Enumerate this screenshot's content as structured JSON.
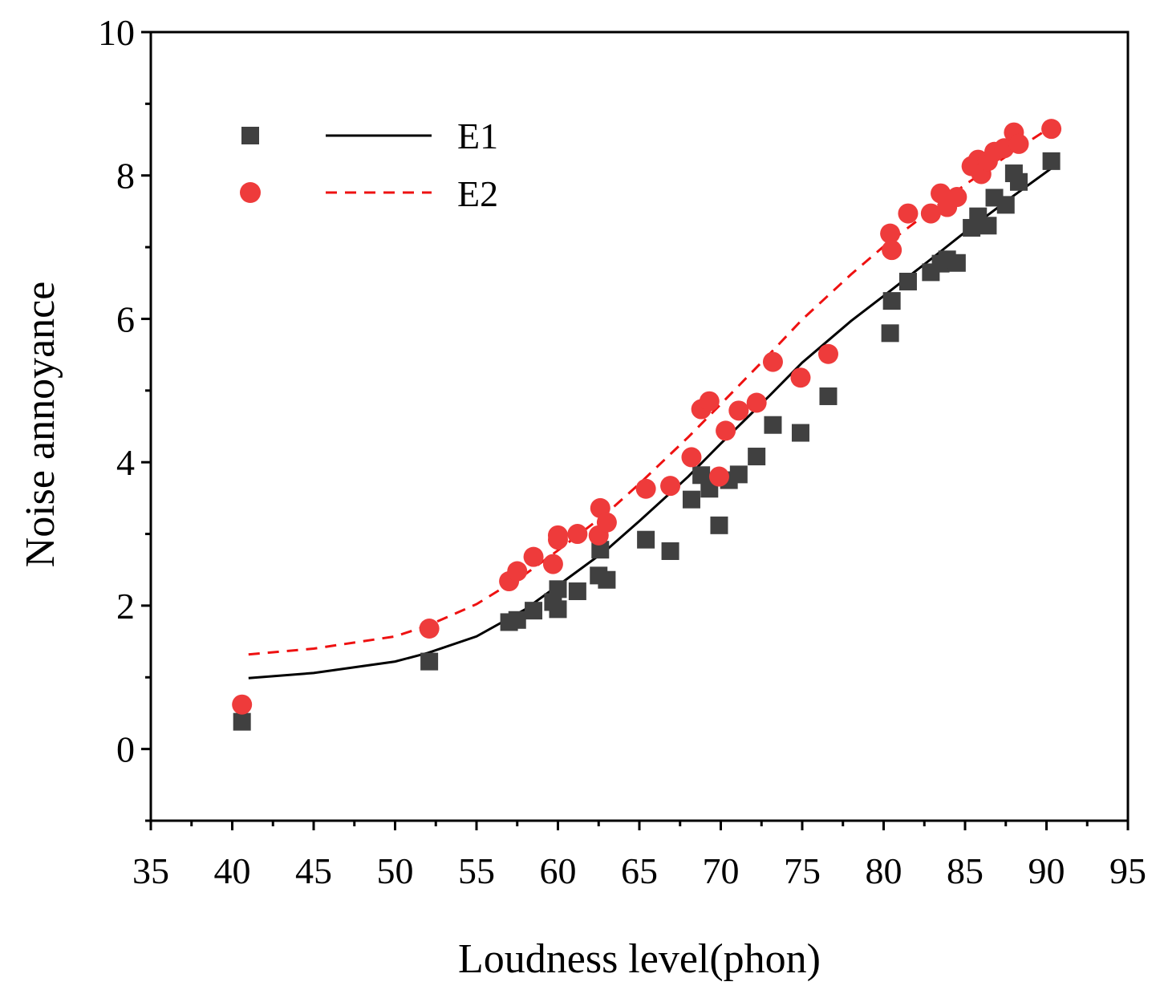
{
  "chart_data": {
    "type": "scatter",
    "title": "",
    "xlabel": "Loudness level(phon)",
    "ylabel": "Noise annoyance",
    "xlim": [
      35,
      95
    ],
    "ylim": [
      -1,
      10
    ],
    "x_ticks": [
      35,
      40,
      45,
      50,
      55,
      60,
      65,
      70,
      75,
      80,
      85,
      90,
      95
    ],
    "y_ticks": [
      0,
      2,
      4,
      6,
      8,
      10
    ],
    "x_tick_labels": [
      "35",
      "40",
      "45",
      "50",
      "55",
      "60",
      "65",
      "70",
      "75",
      "80",
      "85",
      "90",
      "95"
    ],
    "y_tick_labels": [
      "0",
      "2",
      "4",
      "6",
      "8",
      "10"
    ],
    "grid": false,
    "legend_position": "top-left",
    "legend": [
      {
        "label": "E1",
        "marker": "square",
        "line": "solid"
      },
      {
        "label": "E2",
        "marker": "circle",
        "line": "dashed"
      }
    ],
    "colors": {
      "E1": "#404040",
      "E2": "#ee3b3b",
      "E1_line": "#000000",
      "E2_line": "#ee1111"
    },
    "series": [
      {
        "name": "E1",
        "kind": "scatter",
        "marker": "square",
        "points": [
          [
            40.6,
            0.38
          ],
          [
            52.1,
            1.22
          ],
          [
            57.0,
            1.77
          ],
          [
            57.5,
            1.8
          ],
          [
            58.5,
            1.93
          ],
          [
            59.7,
            2.05
          ],
          [
            60.0,
            1.95
          ],
          [
            60.0,
            2.23
          ],
          [
            61.2,
            2.2
          ],
          [
            62.5,
            2.42
          ],
          [
            62.6,
            2.78
          ],
          [
            63.0,
            2.36
          ],
          [
            65.4,
            2.92
          ],
          [
            66.9,
            2.76
          ],
          [
            68.2,
            3.48
          ],
          [
            68.8,
            3.82
          ],
          [
            69.3,
            3.63
          ],
          [
            69.9,
            3.12
          ],
          [
            70.5,
            3.75
          ],
          [
            71.1,
            3.83
          ],
          [
            72.2,
            4.08
          ],
          [
            73.2,
            4.52
          ],
          [
            74.9,
            4.41
          ],
          [
            76.6,
            4.92
          ],
          [
            80.4,
            5.8
          ],
          [
            80.5,
            6.25
          ],
          [
            81.5,
            6.52
          ],
          [
            82.9,
            6.65
          ],
          [
            83.5,
            6.77
          ],
          [
            83.9,
            6.83
          ],
          [
            84.5,
            6.78
          ],
          [
            85.4,
            7.27
          ],
          [
            85.8,
            7.43
          ],
          [
            86.4,
            7.3
          ],
          [
            86.8,
            7.69
          ],
          [
            87.5,
            7.59
          ],
          [
            88.0,
            8.03
          ],
          [
            88.3,
            7.91
          ],
          [
            90.3,
            8.2
          ]
        ]
      },
      {
        "name": "E2",
        "kind": "scatter",
        "marker": "circle",
        "points": [
          [
            40.6,
            0.62
          ],
          [
            52.1,
            1.68
          ],
          [
            57.0,
            2.34
          ],
          [
            57.5,
            2.48
          ],
          [
            58.5,
            2.68
          ],
          [
            59.7,
            2.58
          ],
          [
            60.0,
            2.92
          ],
          [
            60.0,
            2.98
          ],
          [
            61.2,
            3.0
          ],
          [
            62.5,
            2.98
          ],
          [
            62.6,
            3.36
          ],
          [
            63.0,
            3.16
          ],
          [
            65.4,
            3.63
          ],
          [
            66.9,
            3.67
          ],
          [
            68.2,
            4.07
          ],
          [
            68.8,
            4.74
          ],
          [
            69.3,
            4.85
          ],
          [
            69.9,
            3.8
          ],
          [
            70.3,
            4.44
          ],
          [
            71.1,
            4.72
          ],
          [
            72.2,
            4.83
          ],
          [
            73.2,
            5.4
          ],
          [
            74.9,
            5.18
          ],
          [
            76.6,
            5.51
          ],
          [
            80.4,
            7.19
          ],
          [
            80.5,
            6.96
          ],
          [
            81.5,
            7.47
          ],
          [
            82.9,
            7.47
          ],
          [
            83.5,
            7.75
          ],
          [
            83.9,
            7.56
          ],
          [
            84.5,
            7.7
          ],
          [
            85.4,
            8.13
          ],
          [
            85.8,
            8.22
          ],
          [
            86.0,
            8.02
          ],
          [
            86.4,
            8.2
          ],
          [
            86.8,
            8.33
          ],
          [
            87.4,
            8.38
          ],
          [
            88.0,
            8.6
          ],
          [
            88.3,
            8.44
          ],
          [
            90.3,
            8.65
          ]
        ]
      },
      {
        "name": "E1 fit",
        "kind": "line",
        "style": "solid",
        "points": [
          [
            41,
            0.99
          ],
          [
            45,
            1.06
          ],
          [
            50,
            1.22
          ],
          [
            52,
            1.34
          ],
          [
            55,
            1.57
          ],
          [
            58,
            1.95
          ],
          [
            60,
            2.28
          ],
          [
            63,
            2.78
          ],
          [
            65,
            3.18
          ],
          [
            68,
            3.8
          ],
          [
            70,
            4.26
          ],
          [
            73,
            4.93
          ],
          [
            75,
            5.39
          ],
          [
            78,
            5.97
          ],
          [
            80,
            6.32
          ],
          [
            83,
            6.85
          ],
          [
            85,
            7.21
          ],
          [
            88,
            7.72
          ],
          [
            90.3,
            8.1
          ]
        ]
      },
      {
        "name": "E2 fit",
        "kind": "line",
        "style": "dashed",
        "points": [
          [
            41,
            1.32
          ],
          [
            45,
            1.4
          ],
          [
            50,
            1.57
          ],
          [
            52,
            1.72
          ],
          [
            55,
            2.02
          ],
          [
            58,
            2.44
          ],
          [
            60,
            2.77
          ],
          [
            63,
            3.29
          ],
          [
            65,
            3.7
          ],
          [
            68,
            4.35
          ],
          [
            70,
            4.81
          ],
          [
            73,
            5.51
          ],
          [
            75,
            5.99
          ],
          [
            78,
            6.62
          ],
          [
            80,
            7.01
          ],
          [
            83,
            7.53
          ],
          [
            85,
            7.87
          ],
          [
            88,
            8.34
          ],
          [
            90.3,
            8.68
          ]
        ]
      }
    ]
  }
}
